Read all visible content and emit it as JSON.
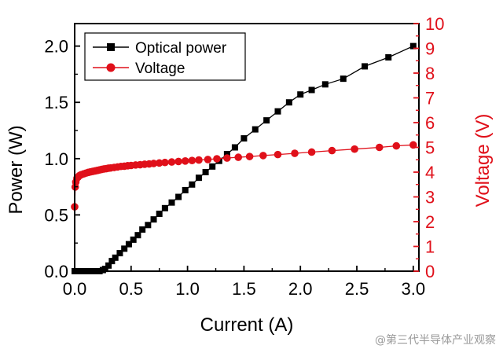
{
  "chart_data": {
    "type": "line",
    "title": "",
    "xlabel": "Current (A)",
    "ylabel_left": "Power (W)",
    "ylabel_right": "Voltage (V)",
    "xlim": [
      0,
      3.05
    ],
    "ylim_left": [
      0,
      2.2
    ],
    "ylim_right": [
      0,
      10
    ],
    "x_ticks": [
      "0.0",
      "0.5",
      "1.0",
      "1.5",
      "2.0",
      "2.5",
      "3.0"
    ],
    "y_ticks_left": [
      "0.0",
      "0.5",
      "1.0",
      "1.5",
      "2.0"
    ],
    "y_ticks_right": [
      "0",
      "1",
      "2",
      "3",
      "4",
      "5",
      "6",
      "7",
      "8",
      "9",
      "10"
    ],
    "grid": false,
    "legend_position": "top-left",
    "colors": {
      "optical": "#000000",
      "voltage": "#e0101a"
    },
    "series": [
      {
        "name": "Optical power",
        "axis": "left",
        "marker": "square",
        "x": [
          0.0,
          0.02,
          0.05,
          0.07,
          0.1,
          0.12,
          0.15,
          0.17,
          0.2,
          0.22,
          0.25,
          0.27,
          0.3,
          0.33,
          0.36,
          0.4,
          0.44,
          0.48,
          0.52,
          0.56,
          0.6,
          0.65,
          0.7,
          0.75,
          0.8,
          0.86,
          0.92,
          0.98,
          1.04,
          1.1,
          1.16,
          1.22,
          1.28,
          1.35,
          1.42,
          1.5,
          1.6,
          1.7,
          1.8,
          1.9,
          2.0,
          2.1,
          2.22,
          2.38,
          2.57,
          2.78,
          3.0
        ],
        "y": [
          0.0,
          0.0,
          0.0,
          0.0,
          0.0,
          0.0,
          0.0,
          0.0,
          0.0,
          0.0,
          0.01,
          0.02,
          0.05,
          0.09,
          0.12,
          0.16,
          0.2,
          0.24,
          0.28,
          0.32,
          0.37,
          0.41,
          0.46,
          0.51,
          0.56,
          0.61,
          0.66,
          0.72,
          0.77,
          0.83,
          0.88,
          0.93,
          0.98,
          1.04,
          1.1,
          1.18,
          1.26,
          1.34,
          1.42,
          1.5,
          1.57,
          1.61,
          1.66,
          1.71,
          1.82,
          1.9,
          2.0
        ]
      },
      {
        "name": "Voltage",
        "axis": "right",
        "marker": "circle",
        "x": [
          0.0,
          0.005,
          0.01,
          0.02,
          0.03,
          0.04,
          0.05,
          0.06,
          0.08,
          0.1,
          0.12,
          0.14,
          0.16,
          0.18,
          0.2,
          0.22,
          0.24,
          0.26,
          0.28,
          0.3,
          0.32,
          0.35,
          0.38,
          0.41,
          0.44,
          0.47,
          0.5,
          0.54,
          0.58,
          0.62,
          0.66,
          0.7,
          0.75,
          0.8,
          0.86,
          0.92,
          0.98,
          1.04,
          1.1,
          1.18,
          1.26,
          1.35,
          1.45,
          1.55,
          1.67,
          1.8,
          1.95,
          2.1,
          2.28,
          2.48,
          2.7,
          2.85,
          3.0
        ],
        "y": [
          2.6,
          3.4,
          3.6,
          3.75,
          3.8,
          3.85,
          3.88,
          3.9,
          3.93,
          3.96,
          3.99,
          4.01,
          4.03,
          4.05,
          4.07,
          4.09,
          4.11,
          4.13,
          4.14,
          4.16,
          4.17,
          4.19,
          4.21,
          4.23,
          4.24,
          4.26,
          4.27,
          4.29,
          4.3,
          4.32,
          4.33,
          4.35,
          4.37,
          4.39,
          4.41,
          4.43,
          4.45,
          4.47,
          4.49,
          4.51,
          4.54,
          4.57,
          4.6,
          4.63,
          4.67,
          4.71,
          4.76,
          4.81,
          4.87,
          4.93,
          5.0,
          5.06,
          5.1
        ]
      }
    ]
  },
  "watermark": "@第三代半导体产业观察"
}
